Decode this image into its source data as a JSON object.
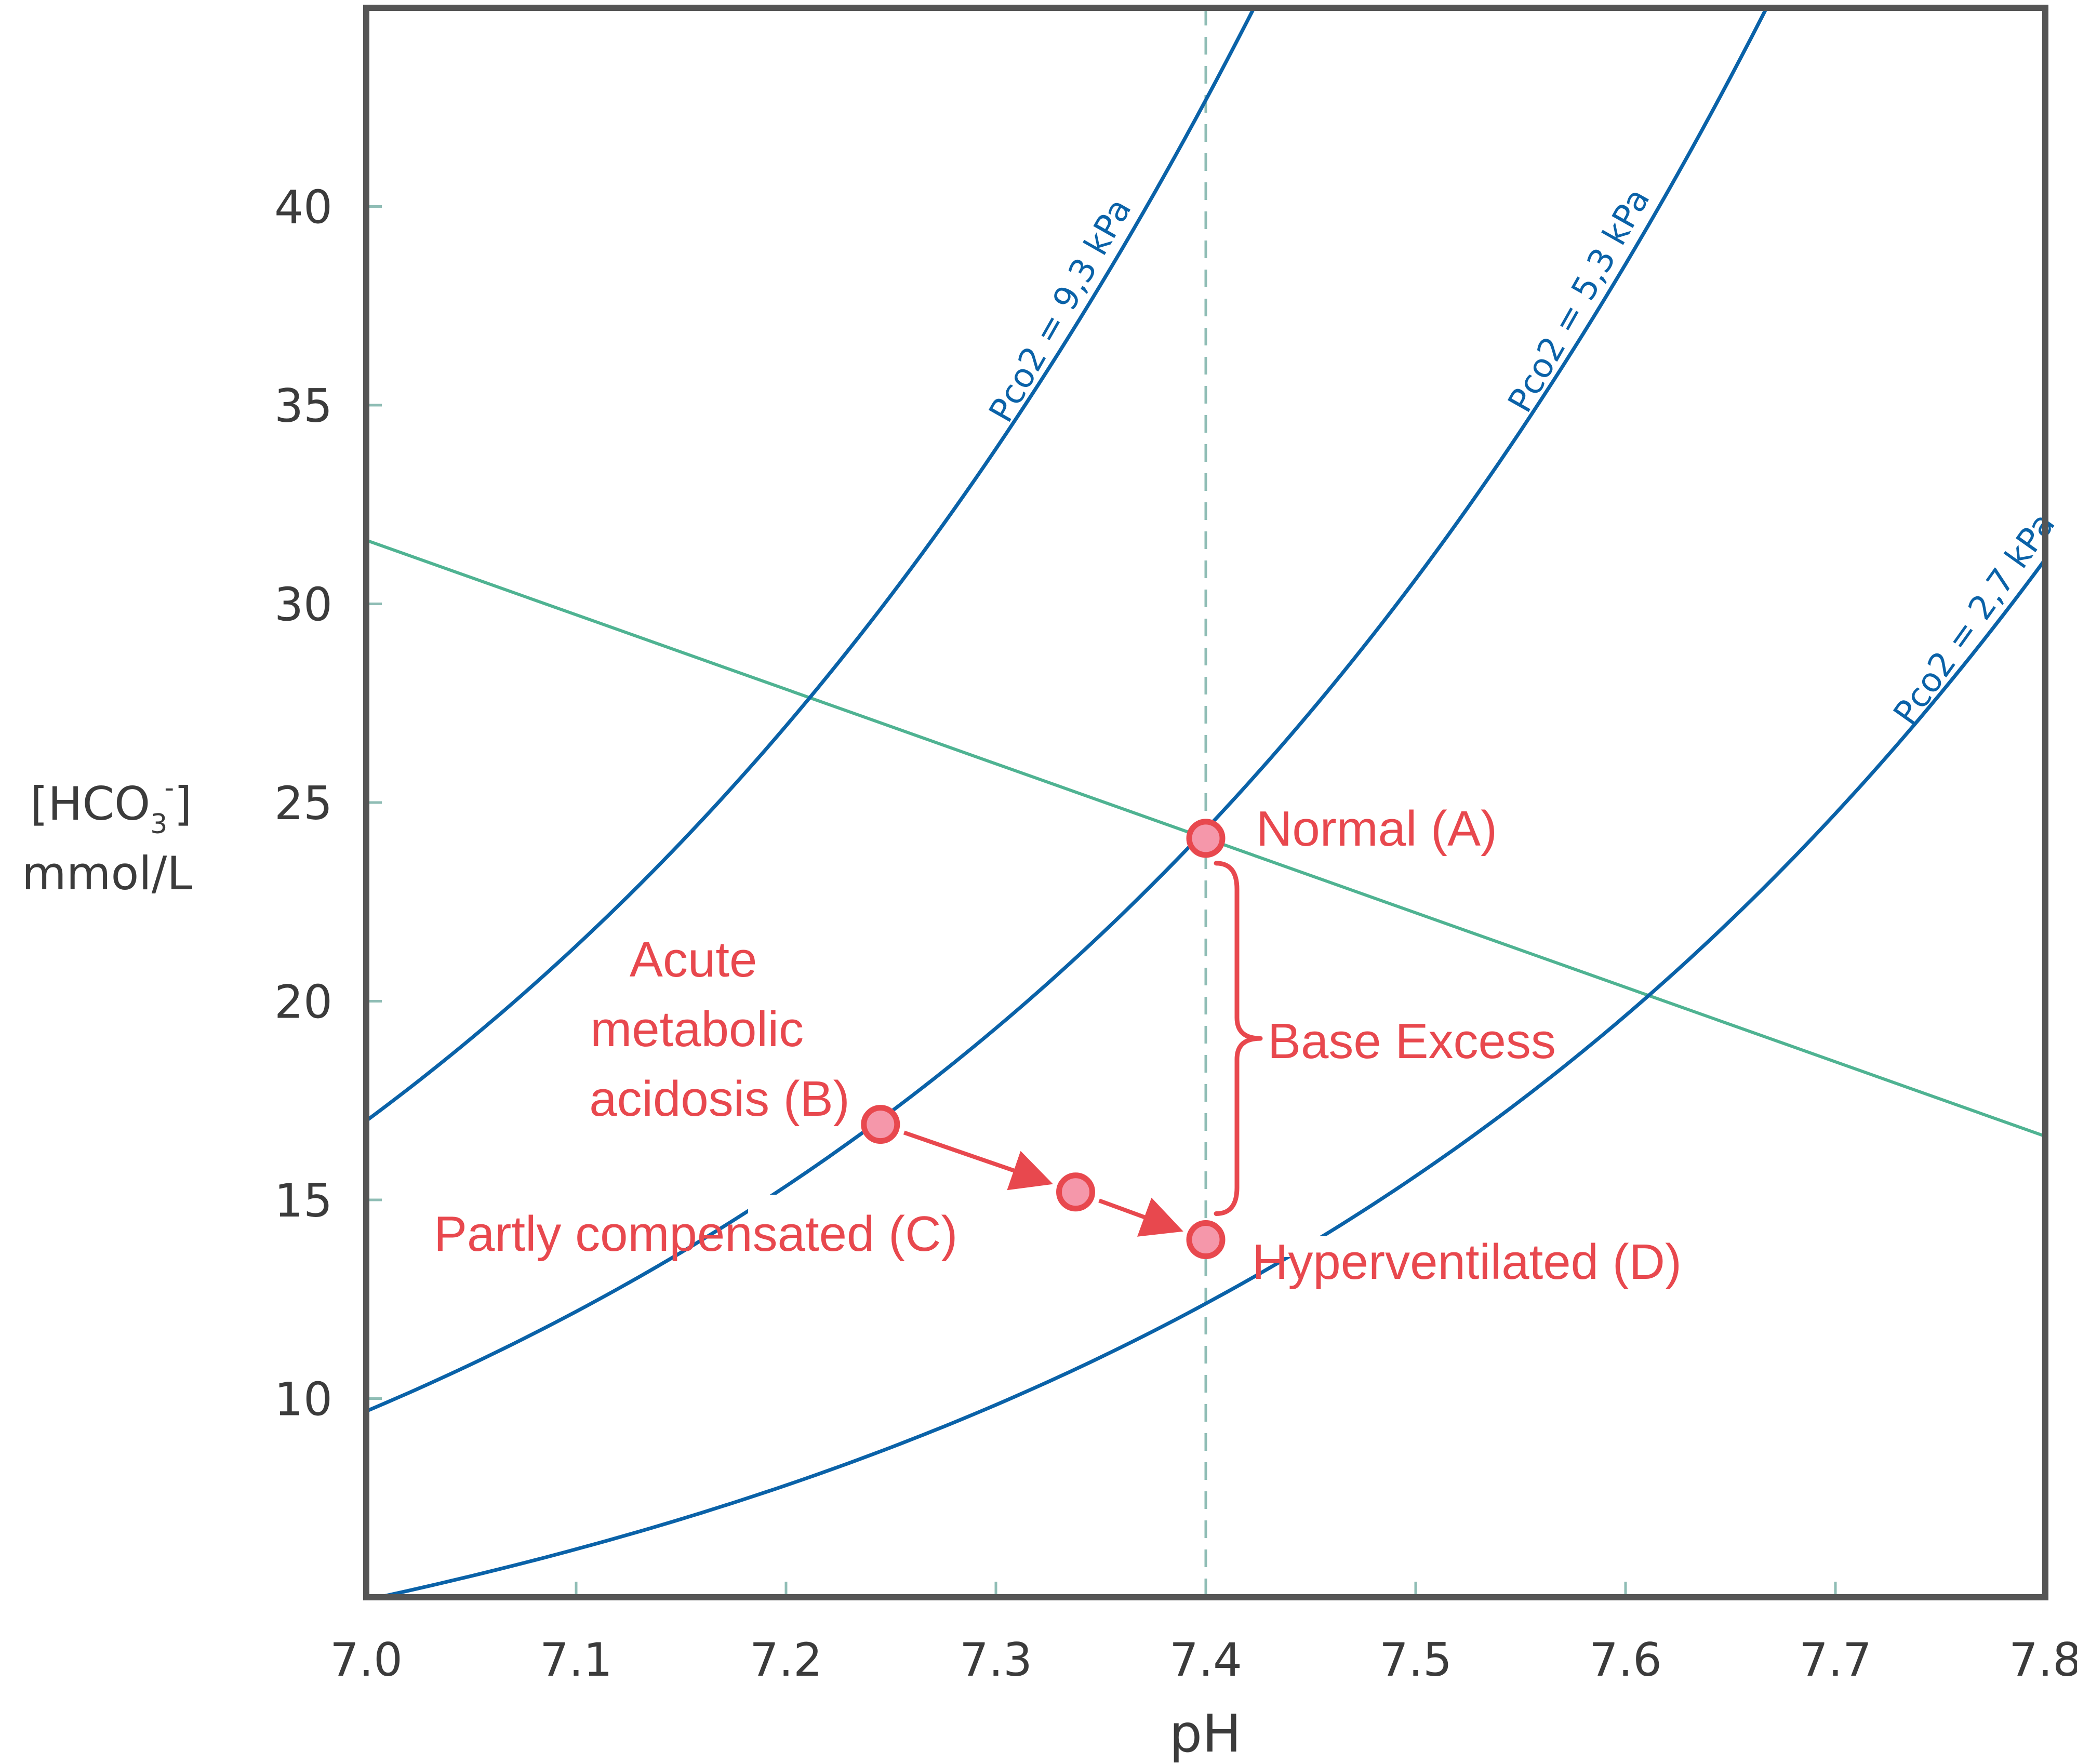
{
  "chart_data": {
    "type": "line",
    "xlabel": "pH",
    "ylabel_line1": "[HCO",
    "ylabel_sub": "3",
    "ylabel_sup": "-",
    "ylabel_close": "]",
    "ylabel_line2": "mmol/L",
    "xlim": [
      7.0,
      7.8
    ],
    "ylim": [
      5,
      45
    ],
    "xticks": [
      "7.0",
      "7.1",
      "7.2",
      "7.3",
      "7.4",
      "7.5",
      "7.6",
      "7.7",
      "7.8"
    ],
    "yticks": [
      "10",
      "15",
      "20",
      "25",
      "30",
      "35",
      "40"
    ],
    "normal_ph": 7.4,
    "isopleths": [
      {
        "label": "Pco2 = 9,3 kPa",
        "pco2_kpa": 9.3
      },
      {
        "label": "Pco2 = 5,3 kPa",
        "pco2_kpa": 5.3
      },
      {
        "label": "Pco2 = 2,7 kPa",
        "pco2_kpa": 2.7
      }
    ],
    "buffer_line": {
      "x": [
        7.0,
        7.8
      ],
      "y": [
        31.6,
        16.6
      ]
    },
    "points": [
      {
        "id": "A",
        "x": 7.4,
        "y": 24.1,
        "label": "Normal (A)"
      },
      {
        "id": "B",
        "x": 7.245,
        "y": 16.9,
        "label": "Acute metabolic acidosis (B)",
        "label_lines": [
          "Acute",
          "metabolic",
          "acidosis (B)"
        ]
      },
      {
        "id": "C",
        "x": 7.338,
        "y": 15.2,
        "label": "Partly compensated (C)"
      },
      {
        "id": "D",
        "x": 7.4,
        "y": 14.0,
        "label": "Hyperventilated (D)"
      }
    ],
    "arrows": [
      [
        "B",
        "C"
      ],
      [
        "C",
        "D"
      ]
    ],
    "bracket_label": "Base Excess",
    "colors": {
      "isopleth": "#0a62a8",
      "buffer_line": "#4fb392",
      "annotation": "#e8484e",
      "point_fill": "#f597aa",
      "frame": "#555555",
      "grid_tick": "#8fbdb5"
    }
  }
}
